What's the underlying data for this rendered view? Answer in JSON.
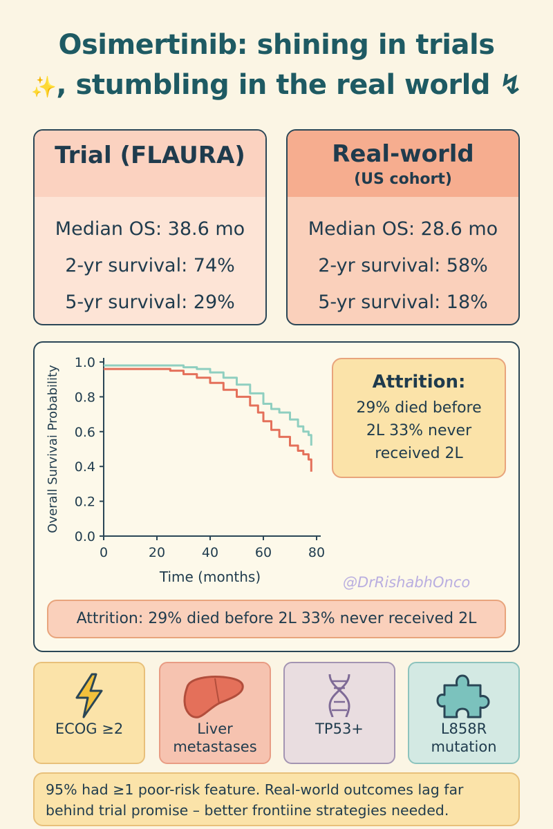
{
  "title": {
    "line1": "Osimertinib: shining in trials",
    "sparkle": "✨",
    "line2": ", stumbling in the real world",
    "trend": "↯"
  },
  "trial_card": {
    "heading": "Trial (FLAURA)",
    "rows": [
      "Median OS: 38.6 mo",
      "2-yr survival: 74%",
      "5-yr survival: 29%"
    ]
  },
  "real_card": {
    "heading": "Real-world",
    "subheading": "(US cohort)",
    "rows": [
      "Median OS: 28.6 mo",
      "2-yr survival: 58%",
      "5-yr survival: 18%"
    ]
  },
  "chart_data": {
    "type": "line",
    "xlabel": "Time (months)",
    "ylabel": "Overall Survivai Probability",
    "xlim": [
      0,
      80
    ],
    "ylim": [
      0,
      1.0
    ],
    "xticks": [
      "0",
      "20",
      "40",
      "60",
      "80"
    ],
    "yticks": [
      "0.0",
      "0.2",
      "0.4",
      "0.6",
      "0.8",
      "1.0"
    ],
    "grid": false,
    "series": [
      {
        "color": "#8fcfc0",
        "x": [
          0,
          10,
          20,
          30,
          35,
          40,
          45,
          50,
          55,
          60,
          63,
          66,
          70,
          73,
          75,
          77,
          78
        ],
        "y": [
          0.98,
          0.98,
          0.98,
          0.97,
          0.96,
          0.94,
          0.91,
          0.87,
          0.82,
          0.76,
          0.73,
          0.71,
          0.67,
          0.63,
          0.6,
          0.58,
          0.52
        ]
      },
      {
        "color": "#e4705a",
        "x": [
          0,
          10,
          20,
          25,
          30,
          35,
          40,
          45,
          50,
          55,
          58,
          60,
          63,
          66,
          70,
          73,
          75,
          77,
          78
        ],
        "y": [
          0.96,
          0.96,
          0.96,
          0.95,
          0.93,
          0.91,
          0.88,
          0.84,
          0.8,
          0.75,
          0.71,
          0.66,
          0.61,
          0.57,
          0.52,
          0.49,
          0.47,
          0.44,
          0.37
        ]
      }
    ]
  },
  "attrition_box": {
    "title": "Attrition:",
    "line1": "29% died before",
    "line2": "2L 33% never",
    "line3": "received 2L"
  },
  "handle": "@DrRishabhOnco",
  "attrition_bar": "Attrition: 29% died before 2L 33% never received 2L",
  "risk_factors": [
    {
      "icon": "lightning-bolt-icon",
      "line1": "ECOG ≥2",
      "line2": ""
    },
    {
      "icon": "liver-icon",
      "line1": "Liver",
      "line2": "metastases"
    },
    {
      "icon": "dna-helix-icon",
      "line1": "TP53+",
      "line2": ""
    },
    {
      "icon": "puzzle-piece-icon",
      "line1": "L858R",
      "line2": "mutation"
    }
  ],
  "footer": {
    "line1": "95% had ≥1 poor-risk feature. Real-world outcomes lag far",
    "line2": "behind trial promise – better frontiine strategies needed."
  }
}
